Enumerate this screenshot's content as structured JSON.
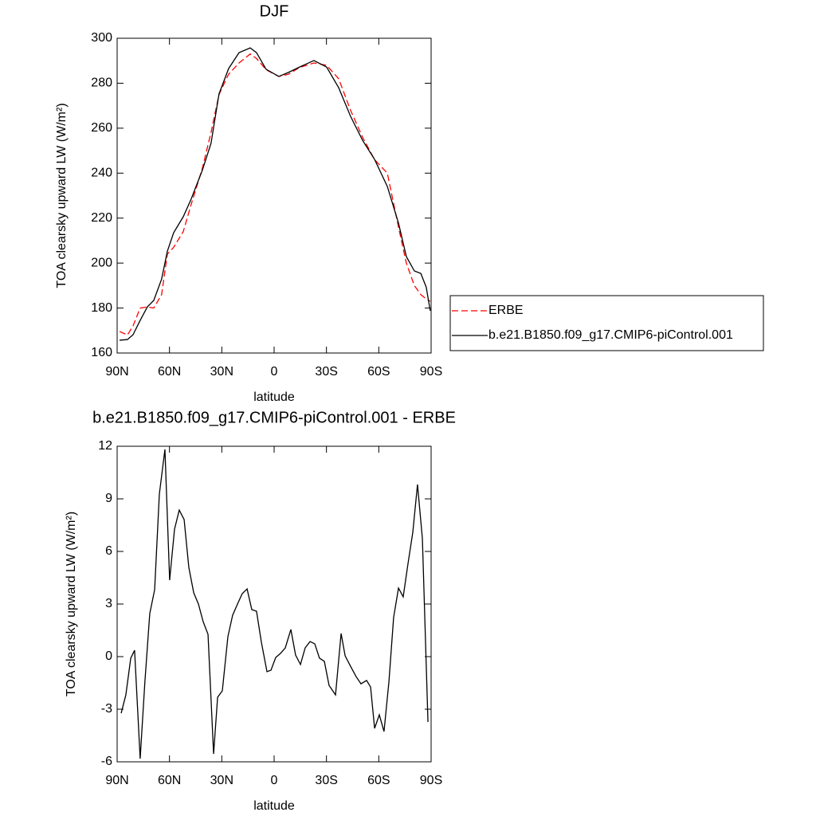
{
  "chart_data": [
    {
      "type": "line",
      "title": "DJF",
      "x_label": "latitude",
      "y_label": "TOA clearsky upward LW (W/m²)",
      "xlim": [
        90,
        -90
      ],
      "ylim": [
        160,
        300
      ],
      "xticks": [
        {
          "value": 90,
          "label": "90N"
        },
        {
          "value": 60,
          "label": "60N"
        },
        {
          "value": 30,
          "label": "30N"
        },
        0,
        {
          "value": -30,
          "label": "30S"
        },
        {
          "value": -60,
          "label": "60S"
        },
        {
          "value": -90,
          "label": "90S"
        }
      ],
      "yticks": [
        160,
        180,
        200,
        220,
        240,
        260,
        280,
        300
      ],
      "legend": "right",
      "x": [
        88.6,
        84.1,
        80.9,
        76.8,
        72.7,
        69.0,
        64.5,
        61.2,
        57.6,
        52.1,
        47.6,
        41.2,
        36.2,
        31.6,
        26.1,
        20.1,
        13.7,
        10.1,
        4.6,
        -2.7,
        -8.2,
        -14.6,
        -22.8,
        -30.1,
        -37.0,
        -43.8,
        -50.7,
        -57.6,
        -64.9,
        -71.3,
        -75.8,
        -80.4,
        -84.1,
        -87.2,
        -89.5
      ],
      "series": [
        {
          "name": "ERBE",
          "color": "#ff0000",
          "dash": "dashed",
          "values": [
            169.6,
            168,
            172,
            180,
            180.5,
            180,
            186,
            204,
            207,
            214,
            226,
            242,
            258,
            275,
            284,
            289,
            293,
            291,
            286,
            283,
            284,
            287,
            289,
            288,
            282,
            268,
            256,
            246,
            240,
            216,
            200,
            190,
            186,
            184,
            183
          ]
        },
        {
          "name": "b.e21.B1850.f09_g17.CMIP6-piControl.001",
          "color": "#000000",
          "dash": "solid",
          "values": [
            165.7,
            166.0,
            168.1,
            174.5,
            180.5,
            183.4,
            192.9,
            205.3,
            213.5,
            220.6,
            228.4,
            241.2,
            253.2,
            275.2,
            286.5,
            293.6,
            295.7,
            293.6,
            286.2,
            283.0,
            284.8,
            287.2,
            290.1,
            287.2,
            278.0,
            265.3,
            254.6,
            246.1,
            234.1,
            217.8,
            202.9,
            196.5,
            195.4,
            189.3,
            178.8
          ]
        }
      ]
    },
    {
      "type": "line",
      "title": "b.e21.B1850.f09_g17.CMIP6-piControl.001 - ERBE",
      "x_label": "latitude",
      "y_label": "TOA clearsky upward LW (W/m²)",
      "xlim": [
        90,
        -90
      ],
      "ylim": [
        -6,
        12
      ],
      "xticks": [
        {
          "value": 90,
          "label": "90N"
        },
        {
          "value": 60,
          "label": "60N"
        },
        {
          "value": 30,
          "label": "30N"
        },
        0,
        {
          "value": -30,
          "label": "30S"
        },
        {
          "value": -60,
          "label": "60S"
        },
        {
          "value": -90,
          "label": "90S"
        }
      ],
      "yticks": [
        -6,
        -3,
        0,
        3,
        6,
        9,
        12
      ],
      "x": [
        87.7,
        85.0,
        82.2,
        80.0,
        76.8,
        74.1,
        71.3,
        68.5,
        65.8,
        62.6,
        59.9,
        57.1,
        54.4,
        51.6,
        48.9,
        46.1,
        43.4,
        40.7,
        37.9,
        34.7,
        32.4,
        29.7,
        26.5,
        23.8,
        21.0,
        18.3,
        15.5,
        12.8,
        10.1,
        7.3,
        4.1,
        1.8,
        -0.9,
        -3.6,
        -6.4,
        -9.6,
        -12.3,
        -15.1,
        -17.8,
        -20.6,
        -23.3,
        -26.0,
        -28.8,
        -31.5,
        -35.2,
        -38.4,
        -40.7,
        -43.8,
        -47.0,
        -49.8,
        -53.0,
        -55.3,
        -57.6,
        -60.3,
        -63.0,
        -65.8,
        -68.5,
        -71.3,
        -74.0,
        -76.7,
        -79.5,
        -82.2,
        -85.0,
        -88.2
      ],
      "series": [
        {
          "color": "#000000",
          "dash": "solid",
          "values": [
            -3.23,
            -2.18,
            -0.09,
            0.36,
            -5.82,
            -1.45,
            2.45,
            3.82,
            9.27,
            11.82,
            4.36,
            7.27,
            8.36,
            7.82,
            5.09,
            3.64,
            3.0,
            2.0,
            1.27,
            -5.55,
            -2.32,
            -1.95,
            1.14,
            2.36,
            3.0,
            3.59,
            3.86,
            2.68,
            2.59,
            0.82,
            -0.86,
            -0.77,
            -0.05,
            0.18,
            0.5,
            1.55,
            0.09,
            -0.45,
            0.5,
            0.86,
            0.73,
            -0.09,
            -0.27,
            -1.64,
            -2.18,
            1.32,
            0.05,
            -0.55,
            -1.14,
            -1.55,
            -1.36,
            -1.73,
            -4.09,
            -3.32,
            -4.27,
            -1.45,
            2.23,
            3.91,
            3.41,
            5.27,
            7.09,
            9.82,
            6.73,
            -3.73
          ]
        }
      ]
    }
  ]
}
